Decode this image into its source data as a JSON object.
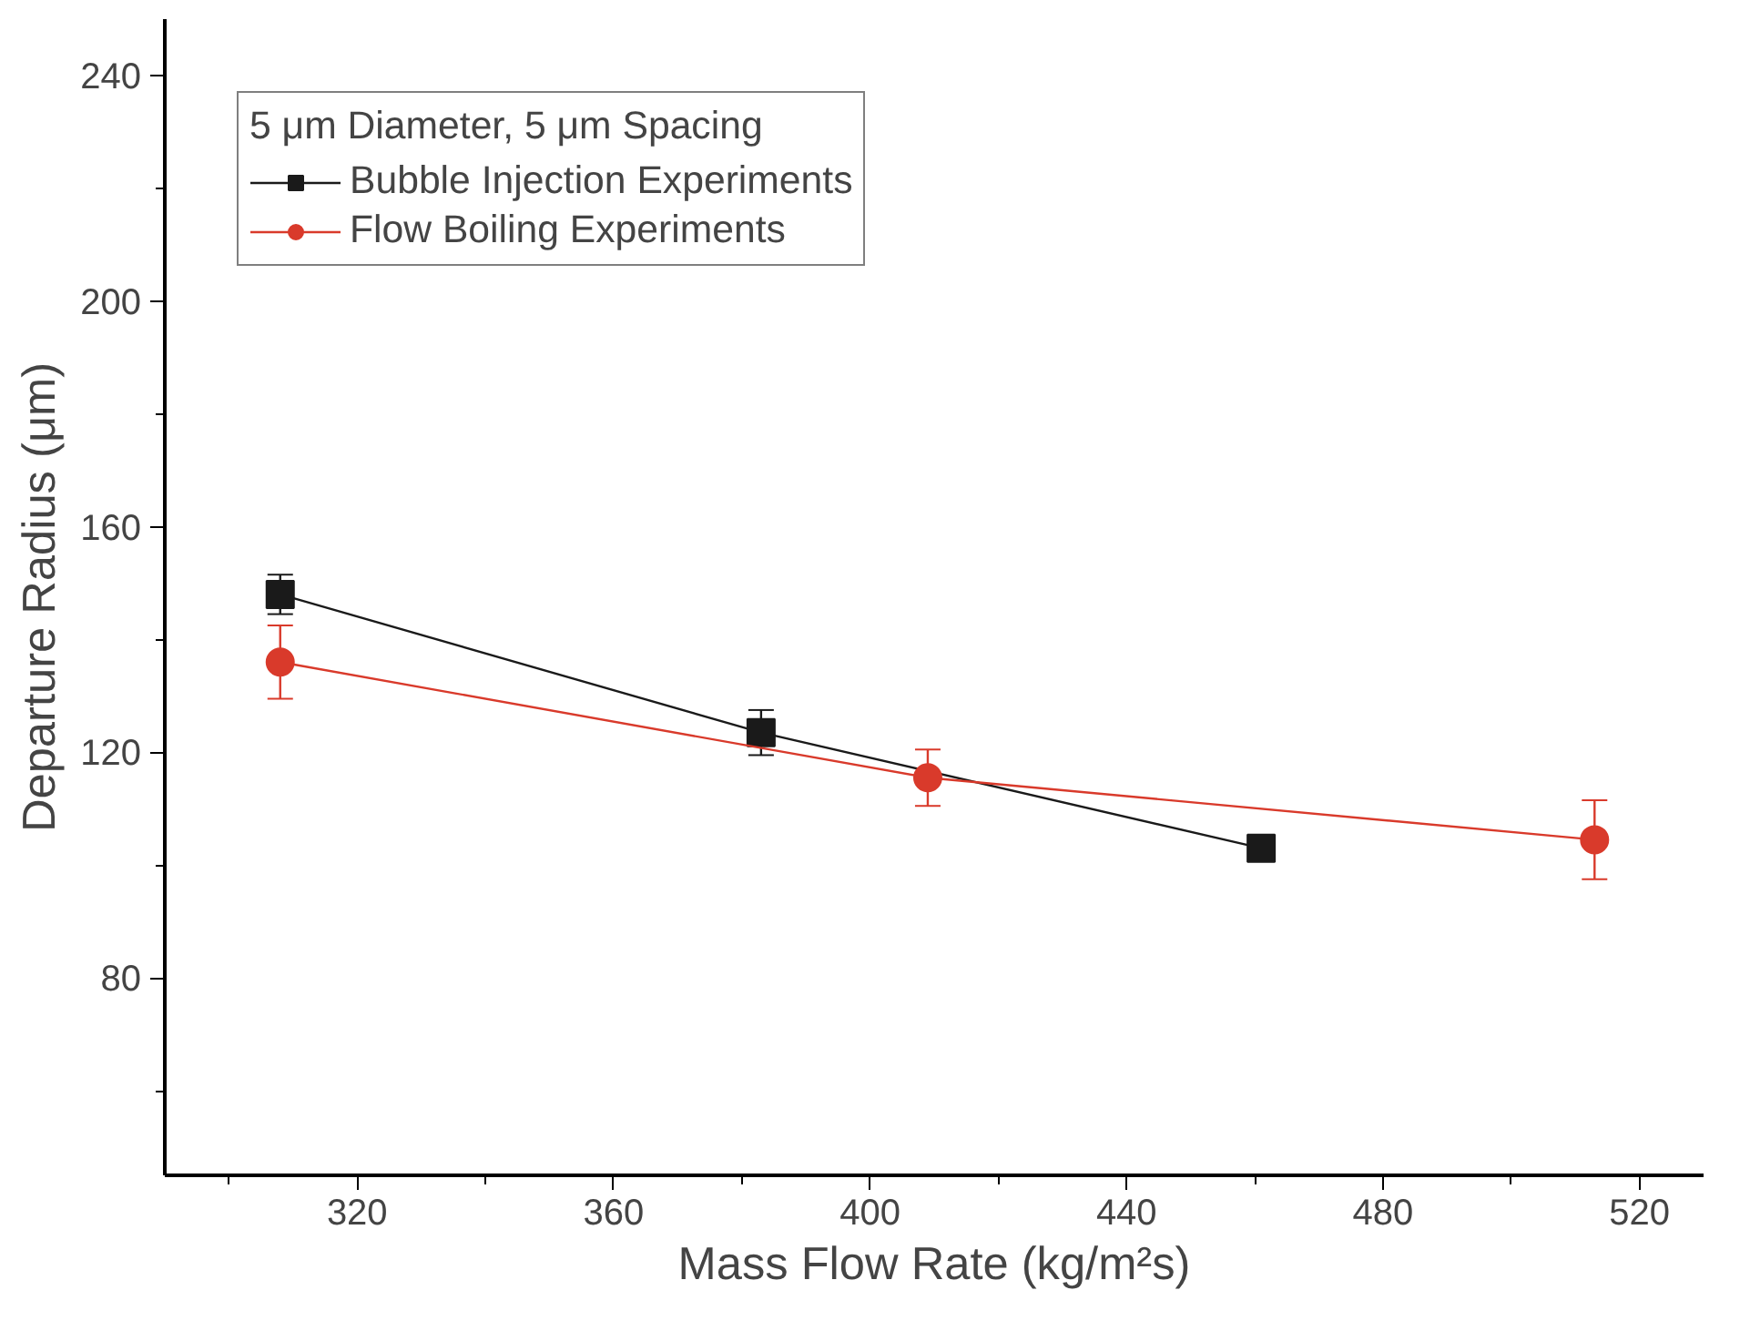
{
  "chart_data": {
    "type": "line",
    "xlabel": "Mass Flow Rate (kg/m²s)",
    "ylabel": "Departure Radius (μm)",
    "legend_title": "5 μm Diameter, 5 μm Spacing",
    "xlim": [
      290,
      530
    ],
    "ylim": [
      45,
      250
    ],
    "xticks": [
      {
        "value": 300,
        "label": null
      },
      320,
      {
        "value": 340,
        "label": null
      },
      360,
      {
        "value": 380,
        "label": null
      },
      400,
      {
        "value": 420,
        "label": null
      },
      440,
      {
        "value": 460,
        "label": null
      },
      480,
      {
        "value": 500,
        "label": null
      },
      520
    ],
    "yticks": [
      {
        "value": 60,
        "label": null
      },
      80,
      {
        "value": 100,
        "label": null
      },
      120,
      {
        "value": 140,
        "label": null
      },
      160,
      {
        "value": 180,
        "label": null
      },
      200,
      {
        "value": 220,
        "label": null
      },
      240
    ],
    "grid": false,
    "legend": "top left",
    "line_style": "solid",
    "series": [
      {
        "name": "Bubble Injection Experiments",
        "color": "#1a1a1a",
        "marker": "square",
        "x": [
          308,
          383,
          461
        ],
        "values": [
          148,
          123.5,
          103
        ],
        "errors": [
          3.5,
          4,
          1.5
        ]
      },
      {
        "name": "Flow Boiling Experiments",
        "color": "#d93a2b",
        "marker": "circle",
        "x": [
          308,
          409,
          513
        ],
        "values": [
          136,
          115.5,
          104.5
        ],
        "errors": [
          6.5,
          5,
          7
        ]
      }
    ]
  }
}
